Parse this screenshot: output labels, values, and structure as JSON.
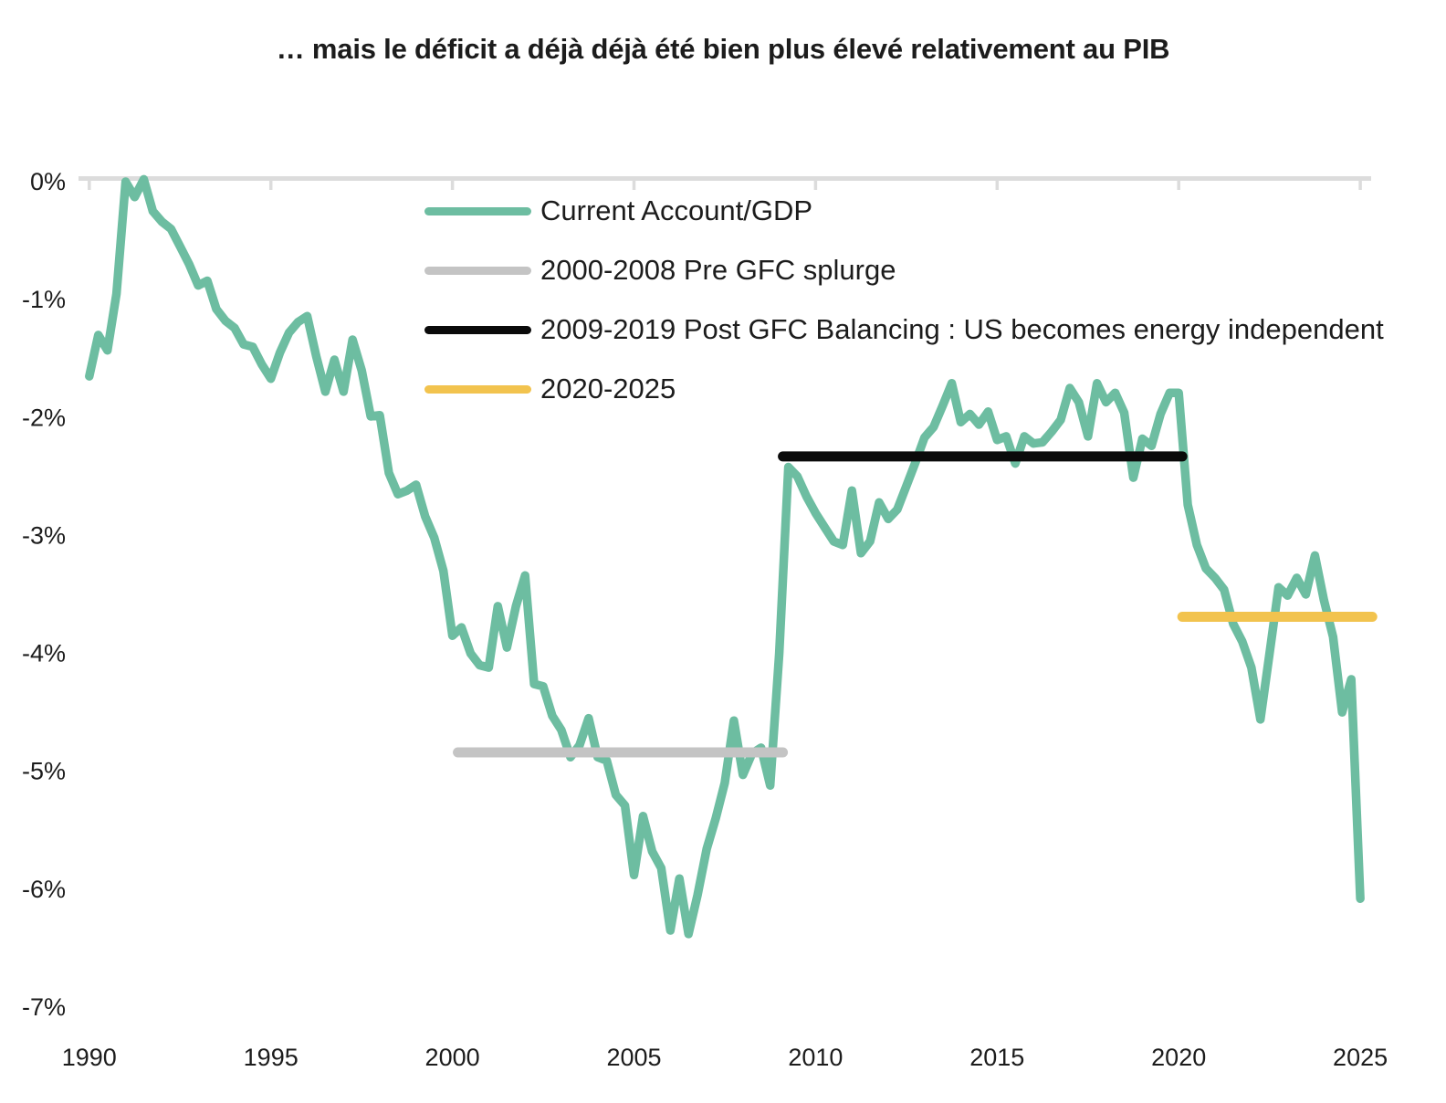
{
  "title": "… mais le déficit a déjà déjà été bien plus élevé relativement au PIB",
  "chart_data": {
    "type": "line",
    "title": "… mais le déficit a déjà déjà été bien plus élevé relativement au PIB",
    "unit": "% of GDP",
    "grid": "none",
    "legend_position": "upper-left-inside",
    "x_axis": {
      "tick_labels": [
        "1990",
        "1995",
        "2000",
        "2005",
        "2010",
        "2015",
        "2020",
        "2025"
      ],
      "tick_years": [
        1990,
        1995,
        2000,
        2005,
        2010,
        2015,
        2020,
        2025
      ],
      "range": [
        1989.7,
        2026.3
      ],
      "axis_position": "top-at-zero"
    },
    "y_axis": {
      "tick_labels": [
        "0%",
        "-1%",
        "-2%",
        "-3%",
        "-4%",
        "-5%",
        "-6%",
        "-7%"
      ],
      "tick_values": [
        0,
        -1,
        -2,
        -3,
        -4,
        -5,
        -6,
        -7
      ],
      "range": [
        -7,
        0.3
      ]
    },
    "series": [
      {
        "name": "Current Account/GDP",
        "color": "#6dbda1",
        "frequency": "quarterly",
        "x_start": 1990.0,
        "x_step": 0.25,
        "values": [
          -1.65,
          -1.3,
          -1.43,
          -0.95,
          0.0,
          -0.13,
          0.02,
          -0.25,
          -0.34,
          -0.4,
          -0.55,
          -0.7,
          -0.88,
          -0.84,
          -1.08,
          -1.18,
          -1.24,
          -1.38,
          -1.4,
          -1.55,
          -1.67,
          -1.45,
          -1.28,
          -1.19,
          -1.14,
          -1.48,
          -1.78,
          -1.51,
          -1.78,
          -1.34,
          -1.6,
          -1.99,
          -1.98,
          -2.47,
          -2.65,
          -2.62,
          -2.57,
          -2.84,
          -3.02,
          -3.3,
          -3.85,
          -3.78,
          -4.0,
          -4.1,
          -4.12,
          -3.6,
          -3.95,
          -3.6,
          -3.34,
          -4.26,
          -4.28,
          -4.53,
          -4.65,
          -4.88,
          -4.78,
          -4.55,
          -4.88,
          -4.91,
          -5.2,
          -5.29,
          -5.88,
          -5.38,
          -5.68,
          -5.82,
          -6.35,
          -5.91,
          -6.38,
          -6.05,
          -5.66,
          -5.4,
          -5.1,
          -4.57,
          -5.03,
          -4.85,
          -4.8,
          -5.12,
          -4.0,
          -2.42,
          -2.5,
          -2.67,
          -2.81,
          -2.93,
          -3.05,
          -3.08,
          -2.62,
          -3.15,
          -3.05,
          -2.72,
          -2.86,
          -2.78,
          -2.58,
          -2.38,
          -2.17,
          -2.08,
          -1.9,
          -1.71,
          -2.04,
          -1.97,
          -2.06,
          -1.95,
          -2.19,
          -2.16,
          -2.39,
          -2.16,
          -2.22,
          -2.21,
          -2.12,
          -2.02,
          -1.75,
          -1.87,
          -2.16,
          -1.71,
          -1.87,
          -1.79,
          -1.96,
          -2.51,
          -2.18,
          -2.24,
          -1.97,
          -1.79,
          -1.79,
          -2.74,
          -3.08,
          -3.28,
          -3.36,
          -3.46,
          -3.75,
          -3.9,
          -4.12,
          -4.56,
          -4.0,
          -3.44,
          -3.51,
          -3.36,
          -3.5,
          -3.17,
          -3.55,
          -3.86,
          -4.5,
          -4.22,
          -6.08
        ]
      }
    ],
    "reference_lines": [
      {
        "name": "2000-2008 Pre GFC splurge",
        "color": "#c4c4c4",
        "value": -4.84,
        "x_from": 2000.15,
        "x_to": 2009.1
      },
      {
        "name": "2009-2019 Post GFC Balancing : US becomes energy independent",
        "color": "#0a0a0a",
        "value": -2.33,
        "x_from": 2009.1,
        "x_to": 2020.1
      },
      {
        "name": "2020-2025",
        "color": "#f2c34e",
        "value": -3.69,
        "x_from": 2020.1,
        "x_to": 2025.33
      }
    ],
    "legend": [
      {
        "label": "Current Account/GDP",
        "color": "#6dbda1"
      },
      {
        "label": "2000-2008 Pre GFC splurge",
        "color": "#c4c4c4"
      },
      {
        "label": "2009-2019 Post GFC Balancing : US becomes energy independent",
        "color": "#0a0a0a"
      },
      {
        "label": "2020-2025",
        "color": "#f2c34e"
      }
    ],
    "style": {
      "axis_color": "#dcdcdc",
      "text_color": "#1c1c1c",
      "series_stroke_width": 9.5,
      "reference_stroke_width": 11
    }
  }
}
